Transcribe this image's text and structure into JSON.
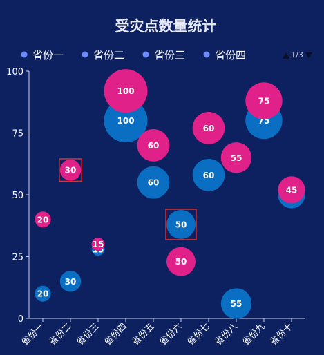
{
  "chart_data": {
    "type": "scatter",
    "title": "受灾点数量统计",
    "categories": [
      "省份一",
      "省份二",
      "省份三",
      "省份四",
      "省份五",
      "省份六",
      "省份七",
      "省份八",
      "省份九",
      "省份十"
    ],
    "ylim": [
      0,
      100
    ],
    "yticks": [
      0,
      25,
      50,
      75,
      100
    ],
    "legend": {
      "position": "top",
      "items": [
        "省份一",
        "省份二",
        "省份三",
        "省份四"
      ],
      "page_text": "1/3",
      "colors": [
        "#6b8cff",
        "#6b8cff",
        "#6b8cff",
        "#6b8cff"
      ]
    },
    "series": [
      {
        "color": "#e0218a",
        "points": [
          {
            "x": "省份一",
            "y": 40,
            "value": 20
          },
          {
            "x": "省份二",
            "y": 60,
            "value": 30
          },
          {
            "x": "省份三",
            "y": 30,
            "value": 15
          },
          {
            "x": "省份四",
            "y": 92,
            "value": 100
          },
          {
            "x": "省份五",
            "y": 70,
            "value": 60
          },
          {
            "x": "省份六",
            "y": 23,
            "value": 50
          },
          {
            "x": "省份七",
            "y": 77,
            "value": 60
          },
          {
            "x": "省份八",
            "y": 65,
            "value": 55
          },
          {
            "x": "省份九",
            "y": 88,
            "value": 75
          },
          {
            "x": "省份十",
            "y": 52,
            "value": 45
          }
        ]
      },
      {
        "color": "#0a6fc2",
        "points": [
          {
            "x": "省份一",
            "y": 10,
            "value": 20
          },
          {
            "x": "省份二",
            "y": 15,
            "value": 30
          },
          {
            "x": "省份三",
            "y": 28,
            "value": 15
          },
          {
            "x": "省份四",
            "y": 80,
            "value": 100
          },
          {
            "x": "省份五",
            "y": 55,
            "value": 60
          },
          {
            "x": "省份六",
            "y": 38,
            "value": 50
          },
          {
            "x": "省份七",
            "y": 58,
            "value": 60
          },
          {
            "x": "省份八",
            "y": 6,
            "value": 55
          },
          {
            "x": "省份九",
            "y": 80,
            "value": 75
          },
          {
            "x": "省份十",
            "y": 50,
            "value": 45
          }
        ]
      }
    ],
    "highlighted": [
      {
        "series": 0,
        "x": "省份二"
      },
      {
        "series": 1,
        "x": "省份六"
      }
    ],
    "highlight_color": "#e03030"
  }
}
